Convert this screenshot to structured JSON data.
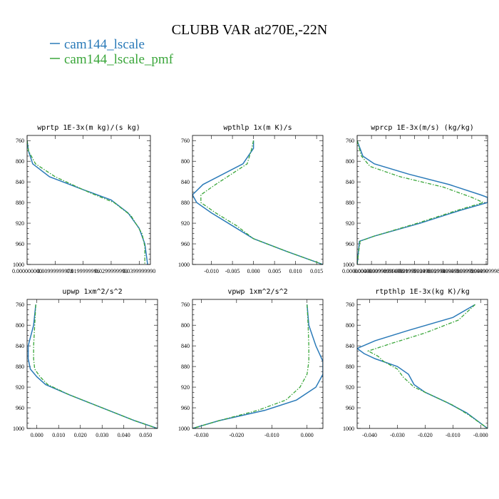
{
  "title": "CLUBB VAR at270E,-22N",
  "colors": {
    "cam144_lscale": "#2a7ab8",
    "cam144_lscale_pmf": "#3aa63a"
  },
  "legend": [
    {
      "name": "cam144_lscale",
      "style": "solid"
    },
    {
      "name": "cam144_lscale_pmf",
      "style": "dashed"
    }
  ],
  "chart_data": [
    {
      "type": "line",
      "title": "wprtp  1E-3x(m kg)/(s kg)",
      "xlim": [
        0.0,
        0.044
      ],
      "ylim": [
        1000,
        750
      ],
      "xticks": [
        0.0,
        0.01,
        0.02,
        0.03,
        0.04
      ],
      "xtick_labels": [
        "0.000000000",
        "0.00999999978",
        "0.0199999996",
        "0.0299999993",
        "0.0399999990"
      ],
      "yticks": [
        760,
        800,
        840,
        880,
        920,
        960,
        1000
      ],
      "series": [
        {
          "name": "cam144_lscale",
          "points": [
            [
              0.0,
              760
            ],
            [
              0.0005,
              780
            ],
            [
              0.002,
              805
            ],
            [
              0.008,
              830
            ],
            [
              0.02,
              855
            ],
            [
              0.03,
              875
            ],
            [
              0.036,
              900
            ],
            [
              0.04,
              930
            ],
            [
              0.042,
              960
            ],
            [
              0.043,
              1000
            ]
          ]
        },
        {
          "name": "cam144_lscale_pmf",
          "points": [
            [
              0.0,
              760
            ],
            [
              0.0005,
              780
            ],
            [
              0.003,
              805
            ],
            [
              0.01,
              830
            ],
            [
              0.022,
              860
            ],
            [
              0.031,
              880
            ],
            [
              0.037,
              905
            ],
            [
              0.041,
              940
            ],
            [
              0.042,
              965
            ],
            [
              0.042,
              1000
            ]
          ]
        }
      ]
    },
    {
      "type": "line",
      "title": "wpthlp  1x(m K)/s",
      "xlim": [
        -0.0145,
        0.0165
      ],
      "ylim": [
        1000,
        750
      ],
      "xticks": [
        -0.01,
        -0.005,
        0.0,
        0.005,
        0.01,
        0.015
      ],
      "xtick_labels": [
        "-0.010",
        "-0.005",
        "0.000",
        "0.005",
        "0.010",
        "0.015"
      ],
      "yticks": [
        760,
        800,
        840,
        880,
        920,
        960,
        1000
      ],
      "series": [
        {
          "name": "cam144_lscale",
          "points": [
            [
              0.0,
              760
            ],
            [
              0.0,
              775
            ],
            [
              -0.0025,
              805
            ],
            [
              -0.012,
              845
            ],
            [
              -0.0145,
              865
            ],
            [
              -0.0135,
              880
            ],
            [
              -0.01,
              900
            ],
            [
              -0.005,
              925
            ],
            [
              0.0,
              950
            ],
            [
              0.008,
              975
            ],
            [
              0.0165,
              1000
            ]
          ]
        },
        {
          "name": "cam144_lscale_pmf",
          "points": [
            [
              0.0,
              760
            ],
            [
              -0.0005,
              778
            ],
            [
              -0.0015,
              805
            ],
            [
              -0.009,
              845
            ],
            [
              -0.0125,
              865
            ],
            [
              -0.0125,
              880
            ],
            [
              -0.009,
              900
            ],
            [
              -0.004,
              925
            ],
            [
              0.0,
              950
            ],
            [
              0.008,
              975
            ],
            [
              0.0165,
              1000
            ]
          ]
        }
      ]
    },
    {
      "type": "line",
      "title": "wprcp  1E-3x(m/s) (kg/kg)",
      "xlim": [
        0.0,
        0.0455
      ],
      "ylim": [
        1000,
        750
      ],
      "xticks": [
        0.0,
        0.005,
        0.01,
        0.015,
        0.02,
        0.025,
        0.03,
        0.035,
        0.04,
        0.045
      ],
      "xtick_labels": [
        "0.000000000",
        "0.00499999989",
        "0.00999999978",
        "0.0149999997",
        "0.0199999996",
        "0.0249999994",
        "0.0299999993",
        "0.0349999992",
        "0.0399999990",
        "0.0449999980"
      ],
      "yticks": [
        760,
        800,
        840,
        880,
        920,
        960,
        1000
      ],
      "series": [
        {
          "name": "cam144_lscale",
          "points": [
            [
              0.0,
              760
            ],
            [
              0.002,
              790
            ],
            [
              0.006,
              805
            ],
            [
              0.018,
              825
            ],
            [
              0.032,
              845
            ],
            [
              0.043,
              865
            ],
            [
              0.0455,
              870
            ],
            [
              0.0455,
              880
            ],
            [
              0.036,
              895
            ],
            [
              0.022,
              920
            ],
            [
              0.006,
              945
            ],
            [
              0.0008,
              955
            ],
            [
              0.0,
              1000
            ]
          ]
        },
        {
          "name": "cam144_lscale_pmf",
          "points": [
            [
              0.0,
              760
            ],
            [
              0.0015,
              790
            ],
            [
              0.0045,
              810
            ],
            [
              0.015,
              830
            ],
            [
              0.03,
              850
            ],
            [
              0.04,
              870
            ],
            [
              0.044,
              880
            ],
            [
              0.035,
              895
            ],
            [
              0.021,
              920
            ],
            [
              0.006,
              945
            ],
            [
              0.001,
              955
            ],
            [
              0.0,
              1000
            ]
          ]
        }
      ]
    },
    {
      "type": "line",
      "title": "upwp  1xm^2/s^2",
      "xlim": [
        -0.0045,
        0.0555
      ],
      "ylim": [
        1000,
        750
      ],
      "xticks": [
        0.0,
        0.01,
        0.02,
        0.03,
        0.04,
        0.05
      ],
      "xtick_labels": [
        "0.000",
        "0.010",
        "0.020",
        "0.030",
        "0.040",
        "0.050"
      ],
      "yticks": [
        760,
        800,
        840,
        880,
        920,
        960,
        1000
      ],
      "series": [
        {
          "name": "cam144_lscale",
          "points": [
            [
              -0.0005,
              760
            ],
            [
              -0.0015,
              800
            ],
            [
              -0.004,
              840
            ],
            [
              -0.004,
              865
            ],
            [
              -0.003,
              885
            ],
            [
              0.0,
              900
            ],
            [
              0.004,
              915
            ],
            [
              0.015,
              935
            ],
            [
              0.03,
              960
            ],
            [
              0.045,
              985
            ],
            [
              0.0555,
              1000
            ]
          ]
        },
        {
          "name": "cam144_lscale_pmf",
          "points": [
            [
              -0.0005,
              760
            ],
            [
              -0.001,
              800
            ],
            [
              -0.0015,
              840
            ],
            [
              -0.0015,
              865
            ],
            [
              -0.001,
              885
            ],
            [
              0.0015,
              900
            ],
            [
              0.005,
              915
            ],
            [
              0.015,
              935
            ],
            [
              0.03,
              960
            ],
            [
              0.045,
              985
            ],
            [
              0.0555,
              1000
            ]
          ]
        }
      ]
    },
    {
      "type": "line",
      "title": "vpwp  1xm^2/s^2",
      "xlim": [
        -0.0325,
        0.0045
      ],
      "ylim": [
        1000,
        750
      ],
      "xticks": [
        -0.03,
        -0.02,
        -0.01,
        0.0
      ],
      "xtick_labels": [
        "-0.030",
        "-0.020",
        "-0.010",
        "0.000"
      ],
      "yticks": [
        760,
        800,
        840,
        880,
        920,
        960,
        1000
      ],
      "series": [
        {
          "name": "cam144_lscale",
          "points": [
            [
              0.0,
              760
            ],
            [
              0.0005,
              800
            ],
            [
              0.0025,
              840
            ],
            [
              0.0045,
              870
            ],
            [
              0.0045,
              895
            ],
            [
              0.0025,
              920
            ],
            [
              -0.003,
              945
            ],
            [
              -0.012,
              965
            ],
            [
              -0.025,
              985
            ],
            [
              -0.0325,
              1000
            ]
          ]
        },
        {
          "name": "cam144_lscale_pmf",
          "points": [
            [
              0.0,
              760
            ],
            [
              0.0003,
              800
            ],
            [
              0.0005,
              840
            ],
            [
              0.0005,
              870
            ],
            [
              0.0,
              895
            ],
            [
              -0.002,
              920
            ],
            [
              -0.006,
              945
            ],
            [
              -0.014,
              965
            ],
            [
              -0.025,
              985
            ],
            [
              -0.0325,
              1000
            ]
          ]
        }
      ]
    },
    {
      "type": "line",
      "title": "rtpthlp  1E-3x(kg K)/kg",
      "xlim": [
        -0.0445,
        0.0025
      ],
      "ylim": [
        1000,
        750
      ],
      "xticks": [
        -0.04,
        -0.03,
        -0.02,
        -0.01,
        0.0
      ],
      "xtick_labels": [
        "-0.040",
        "-0.030",
        "-0.020",
        "-0.010",
        "-0.000"
      ],
      "yticks": [
        760,
        800,
        840,
        880,
        920,
        960,
        1000
      ],
      "series": [
        {
          "name": "cam144_lscale",
          "points": [
            [
              -0.002,
              760
            ],
            [
              -0.01,
              785
            ],
            [
              -0.026,
              810
            ],
            [
              -0.038,
              830
            ],
            [
              -0.0445,
              845
            ],
            [
              -0.042,
              855
            ],
            [
              -0.038,
              865
            ],
            [
              -0.03,
              880
            ],
            [
              -0.026,
              895
            ],
            [
              -0.024,
              915
            ],
            [
              -0.02,
              930
            ],
            [
              -0.012,
              950
            ],
            [
              -0.005,
              970
            ],
            [
              0.0025,
              1000
            ]
          ]
        },
        {
          "name": "cam144_lscale_pmf",
          "points": [
            [
              -0.002,
              760
            ],
            [
              -0.008,
              790
            ],
            [
              -0.02,
              815
            ],
            [
              -0.032,
              835
            ],
            [
              -0.0405,
              850
            ],
            [
              -0.037,
              860
            ],
            [
              -0.035,
              870
            ],
            [
              -0.03,
              885
            ],
            [
              -0.028,
              900
            ],
            [
              -0.024,
              920
            ],
            [
              -0.018,
              935
            ],
            [
              -0.01,
              955
            ],
            [
              -0.004,
              975
            ],
            [
              0.0025,
              1000
            ]
          ]
        }
      ]
    }
  ]
}
